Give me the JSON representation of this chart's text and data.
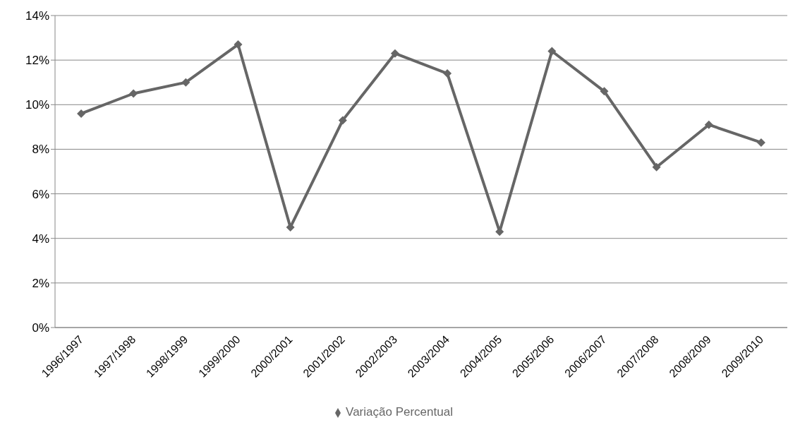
{
  "chart_data": {
    "type": "line",
    "categories": [
      "1996/1997",
      "1997/1998",
      "1998/1999",
      "1999/2000",
      "2000/2001",
      "2001/2002",
      "2002/2003",
      "2003/2004",
      "2004/2005",
      "2005/2006",
      "2006/2007",
      "2007/2008",
      "2008/2009",
      "2009/2010"
    ],
    "series": [
      {
        "name": "Variação Percentual",
        "color": "#666666",
        "values": [
          9.6,
          10.5,
          11.0,
          12.7,
          4.5,
          9.3,
          12.3,
          11.4,
          4.3,
          12.4,
          10.6,
          7.2,
          9.1,
          8.3
        ]
      }
    ],
    "ylim": [
      0,
      14
    ],
    "yticks": [
      {
        "value": 0,
        "label": "0%"
      },
      {
        "value": 2,
        "label": "2%"
      },
      {
        "value": 4,
        "label": "4%"
      },
      {
        "value": 6,
        "label": "6%"
      },
      {
        "value": 8,
        "label": "8%"
      },
      {
        "value": 10,
        "label": "10%"
      },
      {
        "value": 12,
        "label": "12%"
      },
      {
        "value": 14,
        "label": "14%"
      }
    ],
    "grid": "y",
    "legend": "bottom",
    "marker": "diamond",
    "line_style": "solid"
  }
}
